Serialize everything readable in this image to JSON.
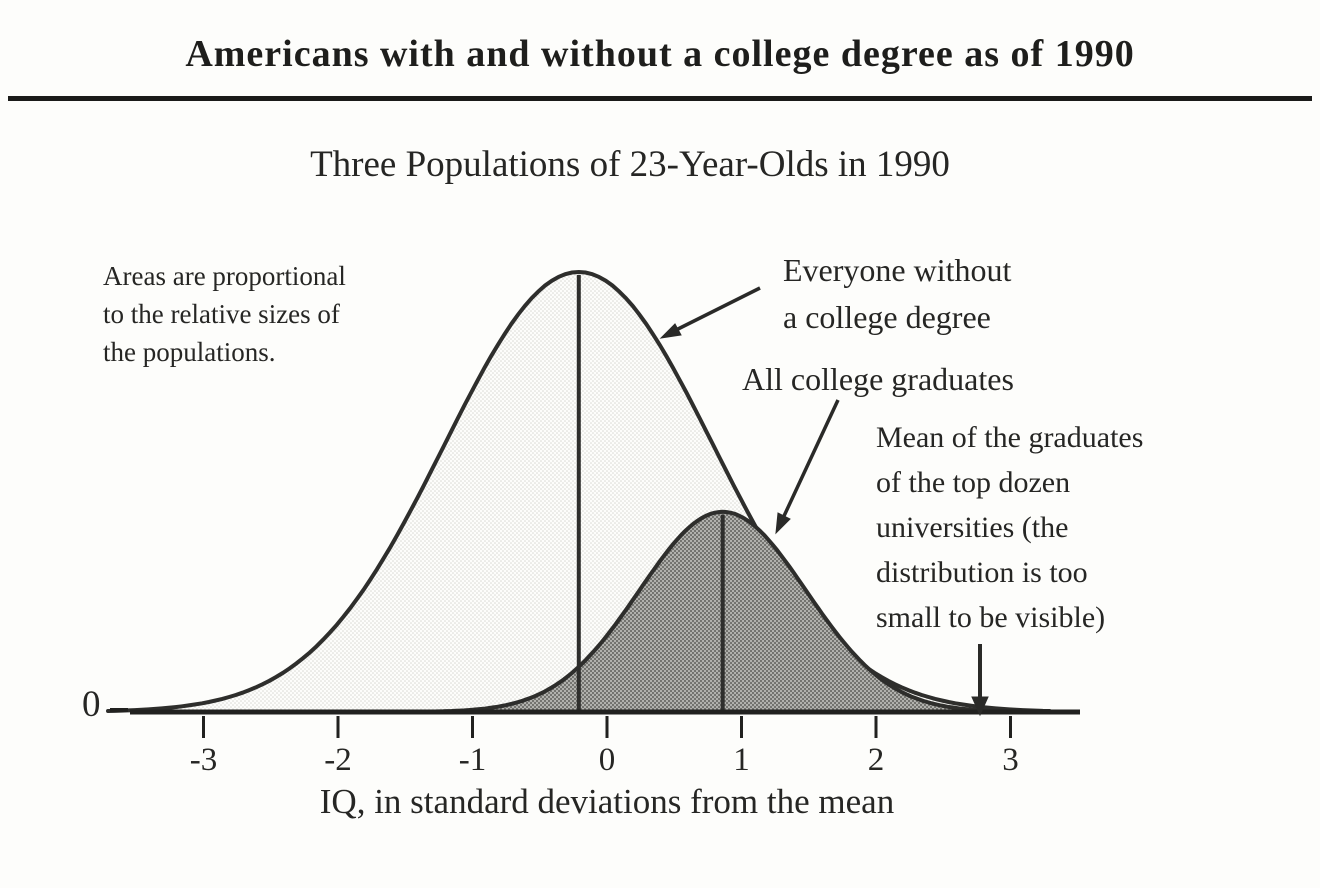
{
  "page": {
    "title": "Americans with and without a college degree as of 1990"
  },
  "chart_data": {
    "type": "area",
    "subtype": "overlapping-normal-distributions",
    "title": "Americans with and without a college degree as of 1990",
    "subtitle": "Three Populations of 23-Year-Olds in 1990",
    "xlabel": "IQ, in standard deviations from the mean",
    "ylabel": "",
    "y_origin_label": "0",
    "xlim": [
      -3.7,
      3.5
    ],
    "grid": false,
    "x_ticks": [
      -3,
      -2,
      -1,
      0,
      1,
      2,
      3
    ],
    "x_tick_labels": [
      "-3",
      "-2",
      "-1",
      "0",
      "1",
      "2",
      "3"
    ],
    "note": "Areas are proportional\nto the relative sizes of\nthe populations.",
    "series": [
      {
        "name": "Everyone without a college degree",
        "key": "everyone-without-a-college-degree",
        "distribution": "normal",
        "mean_sd": -0.21,
        "sd": 1.0,
        "relative_peak": 1.0,
        "fill": "light-stipple",
        "mean_line": true
      },
      {
        "name": "All college graduates",
        "key": "all-college-graduates",
        "distribution": "normal",
        "mean_sd": 0.86,
        "sd": 0.62,
        "relative_peak": 0.455,
        "fill": "dark-stipple",
        "mean_line": true
      }
    ],
    "top_dozen_marker_sd": 2.78,
    "labels": {
      "everyone_without": "Everyone without\na college degree",
      "all_graduates": "All college graduates",
      "top_dozen": "Mean of the graduates\nof the top dozen\nuniversities (the\ndistribution is too\nsmall to be visible)"
    },
    "colors": {
      "ink": "#262624",
      "curve_stroke": "#2e2e2c",
      "axis": "#21211f",
      "light_fill_average": "#efefec",
      "dark_fill_average": "#9b9b97"
    }
  }
}
